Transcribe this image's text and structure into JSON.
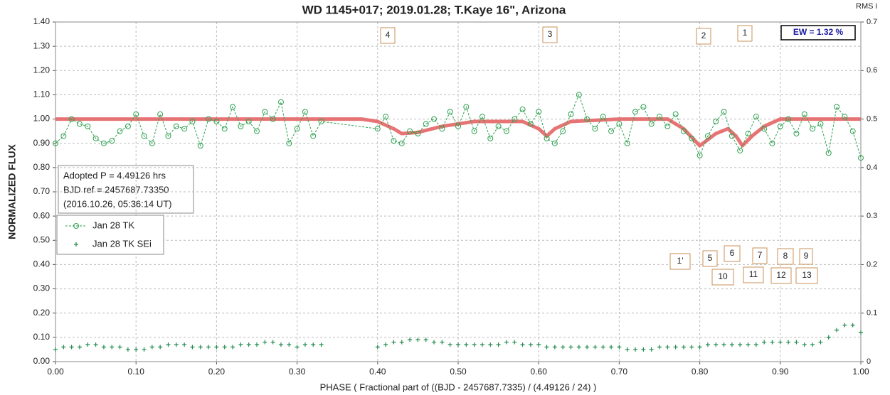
{
  "chart_data": {
    "type": "scatter",
    "title": "WD 1145+017; 2019.01.28; T.Kaye 16\", Arizona",
    "xlabel": "PHASE ( Fractional part of ((BJD - 2457687.7335) / (4.49126 / 24) )",
    "ylabel": "NORMALIZED FLUX",
    "y2label": "RMS i",
    "xlim": [
      0,
      1
    ],
    "ylim": [
      0,
      1.4
    ],
    "y2lim": [
      0,
      0.7
    ],
    "xticks": [
      {
        "value": 0,
        "label": "0.00"
      },
      {
        "value": 0.1,
        "label": "0.10"
      },
      {
        "value": 0.2,
        "label": "0.20"
      },
      {
        "value": 0.3,
        "label": "0.30"
      },
      {
        "value": 0.4,
        "label": "0.40"
      },
      {
        "value": 0.5,
        "label": "0.50"
      },
      {
        "value": 0.6,
        "label": "0.60"
      },
      {
        "value": 0.7,
        "label": "0.70"
      },
      {
        "value": 0.8,
        "label": "0.80"
      },
      {
        "value": 0.9,
        "label": "0.90"
      },
      {
        "value": 1,
        "label": "1.00"
      }
    ],
    "yticks": [
      {
        "value": 0,
        "label": "0.00"
      },
      {
        "value": 0.1,
        "label": "0.10"
      },
      {
        "value": 0.2,
        "label": "0.20"
      },
      {
        "value": 0.3,
        "label": "0.30"
      },
      {
        "value": 0.4,
        "label": "0.40"
      },
      {
        "value": 0.5,
        "label": "0.50"
      },
      {
        "value": 0.6,
        "label": "0.60"
      },
      {
        "value": 0.7,
        "label": "0.70"
      },
      {
        "value": 0.8,
        "label": "0.80"
      },
      {
        "value": 0.9,
        "label": "0.90"
      },
      {
        "value": 1,
        "label": "1.00"
      },
      {
        "value": 1.1,
        "label": "1.10"
      },
      {
        "value": 1.2,
        "label": "1.20"
      },
      {
        "value": 1.3,
        "label": "1.30"
      },
      {
        "value": 1.4,
        "label": "1.40"
      }
    ],
    "y2ticks": [
      0,
      0.1,
      0.2,
      0.3,
      0.4,
      0.5,
      0.6,
      0.7
    ],
    "grid": true,
    "x": [
      0.0,
      0.01,
      0.02,
      0.03,
      0.04,
      0.05,
      0.06,
      0.07,
      0.08,
      0.09,
      0.1,
      0.11,
      0.12,
      0.13,
      0.14,
      0.15,
      0.16,
      0.17,
      0.18,
      0.19,
      0.2,
      0.21,
      0.22,
      0.23,
      0.24,
      0.25,
      0.26,
      0.27,
      0.28,
      0.29,
      0.3,
      0.31,
      0.32,
      0.33,
      0.4,
      0.41,
      0.42,
      0.43,
      0.44,
      0.45,
      0.46,
      0.47,
      0.48,
      0.49,
      0.5,
      0.51,
      0.52,
      0.53,
      0.54,
      0.55,
      0.56,
      0.57,
      0.58,
      0.59,
      0.6,
      0.61,
      0.62,
      0.63,
      0.64,
      0.65,
      0.66,
      0.67,
      0.68,
      0.69,
      0.7,
      0.71,
      0.72,
      0.73,
      0.74,
      0.75,
      0.76,
      0.77,
      0.78,
      0.79,
      0.8,
      0.81,
      0.82,
      0.83,
      0.84,
      0.85,
      0.86,
      0.87,
      0.88,
      0.89,
      0.9,
      0.91,
      0.92,
      0.93,
      0.94,
      0.95,
      0.96,
      0.97,
      0.98,
      0.99,
      1.0
    ],
    "series": [
      {
        "name": "Jan 28 TK",
        "color": "#2ea04f",
        "marker": "circle",
        "values": [
          0.9,
          0.93,
          1.0,
          0.98,
          0.97,
          0.92,
          0.9,
          0.91,
          0.95,
          0.97,
          1.02,
          0.93,
          0.9,
          1.02,
          0.93,
          0.97,
          0.96,
          0.99,
          0.89,
          1.0,
          0.99,
          0.96,
          1.05,
          0.97,
          0.99,
          0.95,
          1.03,
          1.0,
          1.07,
          0.9,
          0.96,
          1.03,
          0.93,
          0.99,
          0.96,
          1.01,
          0.91,
          0.9,
          0.95,
          0.94,
          0.98,
          1.0,
          0.96,
          1.03,
          0.97,
          1.05,
          0.95,
          1.01,
          0.92,
          0.97,
          0.95,
          1.0,
          1.04,
          0.98,
          1.03,
          0.92,
          0.9,
          0.95,
          1.02,
          1.1,
          1.0,
          0.96,
          1.01,
          0.95,
          0.98,
          0.9,
          1.03,
          1.05,
          0.98,
          1.01,
          0.97,
          1.02,
          0.95,
          0.92,
          0.85,
          0.93,
          0.99,
          1.03,
          0.93,
          0.87,
          0.94,
          1.01,
          0.96,
          0.9,
          0.97,
          1.0,
          0.94,
          1.02,
          0.96,
          0.98,
          0.86,
          1.05,
          1.01,
          0.95,
          0.84
        ]
      },
      {
        "name": "Jan 28 TK SEi",
        "color": "#1f8a4c",
        "marker": "plus",
        "values": [
          0.05,
          0.06,
          0.06,
          0.06,
          0.07,
          0.07,
          0.06,
          0.06,
          0.06,
          0.05,
          0.05,
          0.05,
          0.06,
          0.06,
          0.07,
          0.07,
          0.07,
          0.06,
          0.06,
          0.06,
          0.06,
          0.06,
          0.06,
          0.07,
          0.07,
          0.07,
          0.08,
          0.08,
          0.07,
          0.07,
          0.06,
          0.07,
          0.07,
          0.07,
          0.06,
          0.07,
          0.08,
          0.08,
          0.09,
          0.09,
          0.09,
          0.08,
          0.08,
          0.07,
          0.07,
          0.07,
          0.07,
          0.07,
          0.07,
          0.07,
          0.08,
          0.08,
          0.07,
          0.07,
          0.07,
          0.06,
          0.06,
          0.06,
          0.06,
          0.06,
          0.06,
          0.06,
          0.06,
          0.06,
          0.06,
          0.05,
          0.05,
          0.05,
          0.05,
          0.06,
          0.06,
          0.06,
          0.06,
          0.06,
          0.06,
          0.07,
          0.07,
          0.07,
          0.07,
          0.07,
          0.07,
          0.07,
          0.08,
          0.08,
          0.08,
          0.08,
          0.08,
          0.07,
          0.07,
          0.08,
          0.1,
          0.13,
          0.15,
          0.15,
          0.12
        ]
      }
    ],
    "model": {
      "color": "#e46565",
      "x": [
        0,
        0.38,
        0.4,
        0.42,
        0.43,
        0.45,
        0.48,
        0.52,
        0.58,
        0.6,
        0.61,
        0.62,
        0.64,
        0.7,
        0.76,
        0.78,
        0.8,
        0.82,
        0.835,
        0.845,
        0.853,
        0.865,
        0.88,
        0.9,
        1.0
      ],
      "values": [
        1,
        1,
        0.99,
        0.96,
        0.94,
        0.945,
        0.97,
        0.99,
        0.99,
        0.96,
        0.93,
        0.96,
        0.99,
        1,
        1,
        0.96,
        0.89,
        0.94,
        0.96,
        0.93,
        0.89,
        0.93,
        0.97,
        1.0,
        1.0
      ]
    },
    "annotations": [
      "4",
      "3",
      "2",
      "1",
      "1'",
      "5",
      "6",
      "7",
      "8",
      "9",
      "10",
      "11",
      "12",
      "13"
    ],
    "ew_label": "EW =  1.32 %",
    "info": [
      "Adopted P = 4.49126 hrs",
      "BJD ref = 2457687.73350",
      "(2016.10.26, 05:36:14 UT)"
    ]
  }
}
